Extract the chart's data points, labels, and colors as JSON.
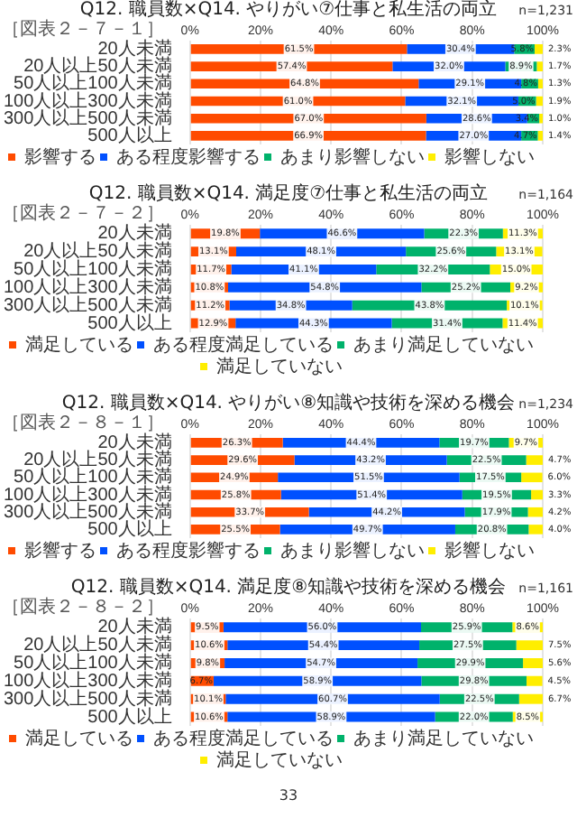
{
  "chart_data": [
    {
      "type": "bar",
      "orientation": "horizontal",
      "stacked": true,
      "title": "Q12. 職員数×Q14. やりがい⑦仕事と私生活の両立",
      "annotations": [
        "［図表２－７－１］",
        "n=1,231"
      ],
      "categories": [
        "20人未満",
        "20人以上50人未満",
        "50人以上100人未満",
        "100人以上300人未満",
        "300人以上500人未満",
        "500人以上"
      ],
      "series": [
        {
          "name": "影響する",
          "color": "#ff4b00",
          "values": [
            61.5,
            57.4,
            64.8,
            61.0,
            67.0,
            66.9
          ],
          "value_labels": [
            "61.5%",
            "57.4%",
            "64.8%",
            "61.0%",
            "67.0%",
            "66.9%"
          ]
        },
        {
          "name": "ある程度影響する",
          "color": "#0050ff",
          "values": [
            30.4,
            32.0,
            29.1,
            32.1,
            28.6,
            27.0
          ],
          "value_labels": [
            "30.4%",
            "32.0%",
            "29.1%",
            "32.1%",
            "28.6%",
            "27.0%"
          ]
        },
        {
          "name": "あまり影響しない",
          "color": "#00b26b",
          "values": [
            5.8,
            8.9,
            4.8,
            5.0,
            3.4,
            4.7
          ],
          "value_labels": [
            "5.8%",
            "8.9%",
            "4.8%",
            "5.0%",
            "3.4%",
            "4.7%"
          ]
        },
        {
          "name": "影響しない",
          "color": "#ffee00",
          "values": [
            2.3,
            1.7,
            1.3,
            1.9,
            1.0,
            1.4
          ],
          "value_labels": [
            "2.3%",
            "1.7%",
            "1.3%",
            "1.9%",
            "1.0%",
            "1.4%"
          ]
        }
      ],
      "xlim": [
        0,
        100
      ],
      "xticks": [
        {
          "value": 0,
          "label": "0%"
        },
        {
          "value": 20,
          "label": "20%"
        },
        {
          "value": 40,
          "label": "40%"
        },
        {
          "value": 60,
          "label": "60%"
        },
        {
          "value": 80,
          "label": "80%"
        },
        {
          "value": 100,
          "label": "100%"
        }
      ],
      "grid": "x",
      "legend": "bottom"
    },
    {
      "type": "bar",
      "orientation": "horizontal",
      "stacked": true,
      "title": "Q12. 職員数×Q14. 満足度⑦仕事と私生活の両立",
      "annotations": [
        "［図表２－７－２］",
        "n=1,164"
      ],
      "categories": [
        "20人未満",
        "20人以上50人未満",
        "50人以上100人未満",
        "100人以上300人未満",
        "300人以上500人未満",
        "500人以上"
      ],
      "series": [
        {
          "name": "満足している",
          "color": "#ff4b00",
          "values": [
            19.8,
            13.1,
            11.7,
            10.8,
            11.2,
            12.9
          ],
          "value_labels": [
            "19.8%",
            "13.1%",
            "11.7%",
            "10.8%",
            "11.2%",
            "12.9%"
          ]
        },
        {
          "name": "ある程度満足している",
          "color": "#0050ff",
          "values": [
            46.6,
            48.1,
            41.1,
            54.8,
            34.8,
            44.3
          ],
          "value_labels": [
            "46.6%",
            "48.1%",
            "41.1%",
            "54.8%",
            "34.8%",
            "44.3%"
          ]
        },
        {
          "name": "あまり満足していない",
          "color": "#00b26b",
          "values": [
            22.3,
            25.6,
            32.2,
            25.2,
            43.8,
            31.4
          ],
          "value_labels": [
            "22.3%",
            "25.6%",
            "32.2%",
            "25.2%",
            "43.8%",
            "31.4%"
          ]
        },
        {
          "name": "満足していない",
          "color": "#ffee00",
          "values": [
            11.3,
            13.1,
            15.0,
            9.2,
            10.1,
            11.4
          ],
          "value_labels": [
            "11.3%",
            "13.1%",
            "15.0%",
            "9.2%",
            "10.1%",
            "11.4%"
          ]
        }
      ],
      "xlim": [
        0,
        100
      ],
      "xticks": [
        {
          "value": 0,
          "label": "0%"
        },
        {
          "value": 20,
          "label": "20%"
        },
        {
          "value": 40,
          "label": "40%"
        },
        {
          "value": 60,
          "label": "60%"
        },
        {
          "value": 80,
          "label": "80%"
        },
        {
          "value": 100,
          "label": "100%"
        }
      ],
      "grid": "x",
      "legend": "bottom"
    },
    {
      "type": "bar",
      "orientation": "horizontal",
      "stacked": true,
      "title": "Q12. 職員数×Q14. やりがい⑧知識や技術を深める機会",
      "annotations": [
        "［図表２－８－１］",
        "n=1,234"
      ],
      "categories": [
        "20人未満",
        "20人以上50人未満",
        "50人以上100人未満",
        "100人以上300人未満",
        "300人以上500人未満",
        "500人以上"
      ],
      "series": [
        {
          "name": "影響する",
          "color": "#ff4b00",
          "values": [
            26.3,
            29.6,
            24.9,
            25.8,
            33.7,
            25.5
          ],
          "value_labels": [
            "26.3%",
            "29.6%",
            "24.9%",
            "25.8%",
            "33.7%",
            "25.5%"
          ]
        },
        {
          "name": "ある程度影響する",
          "color": "#0050ff",
          "values": [
            44.4,
            43.2,
            51.5,
            51.4,
            44.2,
            49.7
          ],
          "value_labels": [
            "44.4%",
            "43.2%",
            "51.5%",
            "51.4%",
            "44.2%",
            "49.7%"
          ]
        },
        {
          "name": "あまり影響しない",
          "color": "#00b26b",
          "values": [
            19.7,
            22.5,
            17.5,
            19.5,
            17.9,
            20.8
          ],
          "value_labels": [
            "19.7%",
            "22.5%",
            "17.5%",
            "19.5%",
            "17.9%",
            "20.8%"
          ]
        },
        {
          "name": "影響しない",
          "color": "#ffee00",
          "values": [
            9.7,
            4.7,
            6.0,
            3.3,
            4.2,
            4.0
          ],
          "value_labels": [
            "9.7%",
            "4.7%",
            "6.0%",
            "3.3%",
            "4.2%",
            "4.0%"
          ]
        }
      ],
      "xlim": [
        0,
        100
      ],
      "xticks": [
        {
          "value": 0,
          "label": "0%"
        },
        {
          "value": 20,
          "label": "20%"
        },
        {
          "value": 40,
          "label": "40%"
        },
        {
          "value": 60,
          "label": "60%"
        },
        {
          "value": 80,
          "label": "80%"
        },
        {
          "value": 100,
          "label": "100%"
        }
      ],
      "grid": "x",
      "legend": "bottom"
    },
    {
      "type": "bar",
      "orientation": "horizontal",
      "stacked": true,
      "title": "Q12. 職員数×Q14. 満足度⑧知識や技術を深める機会",
      "annotations": [
        "［図表２－８－２］",
        "n=1,161",
        "33"
      ],
      "categories": [
        "20人未満",
        "20人以上50人未満",
        "50人以上100人未満",
        "100人以上300人未満",
        "300人以上500人未満",
        "500人以上"
      ],
      "series": [
        {
          "name": "満足している",
          "color": "#ff4b00",
          "values": [
            9.5,
            10.6,
            9.8,
            6.7,
            10.1,
            10.6
          ],
          "value_labels": [
            "9.5%",
            "10.6%",
            "9.8%",
            "6.7%",
            "10.1%",
            "10.6%"
          ]
        },
        {
          "name": "ある程度満足している",
          "color": "#0050ff",
          "values": [
            56.0,
            54.4,
            54.7,
            58.9,
            60.7,
            58.9
          ],
          "value_labels": [
            "56.0%",
            "54.4%",
            "54.7%",
            "58.9%",
            "60.7%",
            "58.9%"
          ]
        },
        {
          "name": "あまり満足していない",
          "color": "#00b26b",
          "values": [
            25.9,
            27.5,
            29.9,
            29.8,
            22.5,
            22.0
          ],
          "value_labels": [
            "25.9%",
            "27.5%",
            "29.9%",
            "29.8%",
            "22.5%",
            "22.0%"
          ]
        },
        {
          "name": "満足していない",
          "color": "#ffee00",
          "values": [
            8.6,
            7.5,
            5.6,
            4.5,
            6.7,
            8.5
          ],
          "value_labels": [
            "8.6%",
            "7.5%",
            "5.6%",
            "4.5%",
            "6.7%",
            "8.5%"
          ]
        }
      ],
      "xlim": [
        0,
        100
      ],
      "xticks": [
        {
          "value": 0,
          "label": "0%"
        },
        {
          "value": 20,
          "label": "20%"
        },
        {
          "value": 40,
          "label": "40%"
        },
        {
          "value": 60,
          "label": "60%"
        },
        {
          "value": 80,
          "label": "80%"
        },
        {
          "value": 100,
          "label": "100%"
        }
      ],
      "grid": "x",
      "legend": "bottom"
    }
  ]
}
